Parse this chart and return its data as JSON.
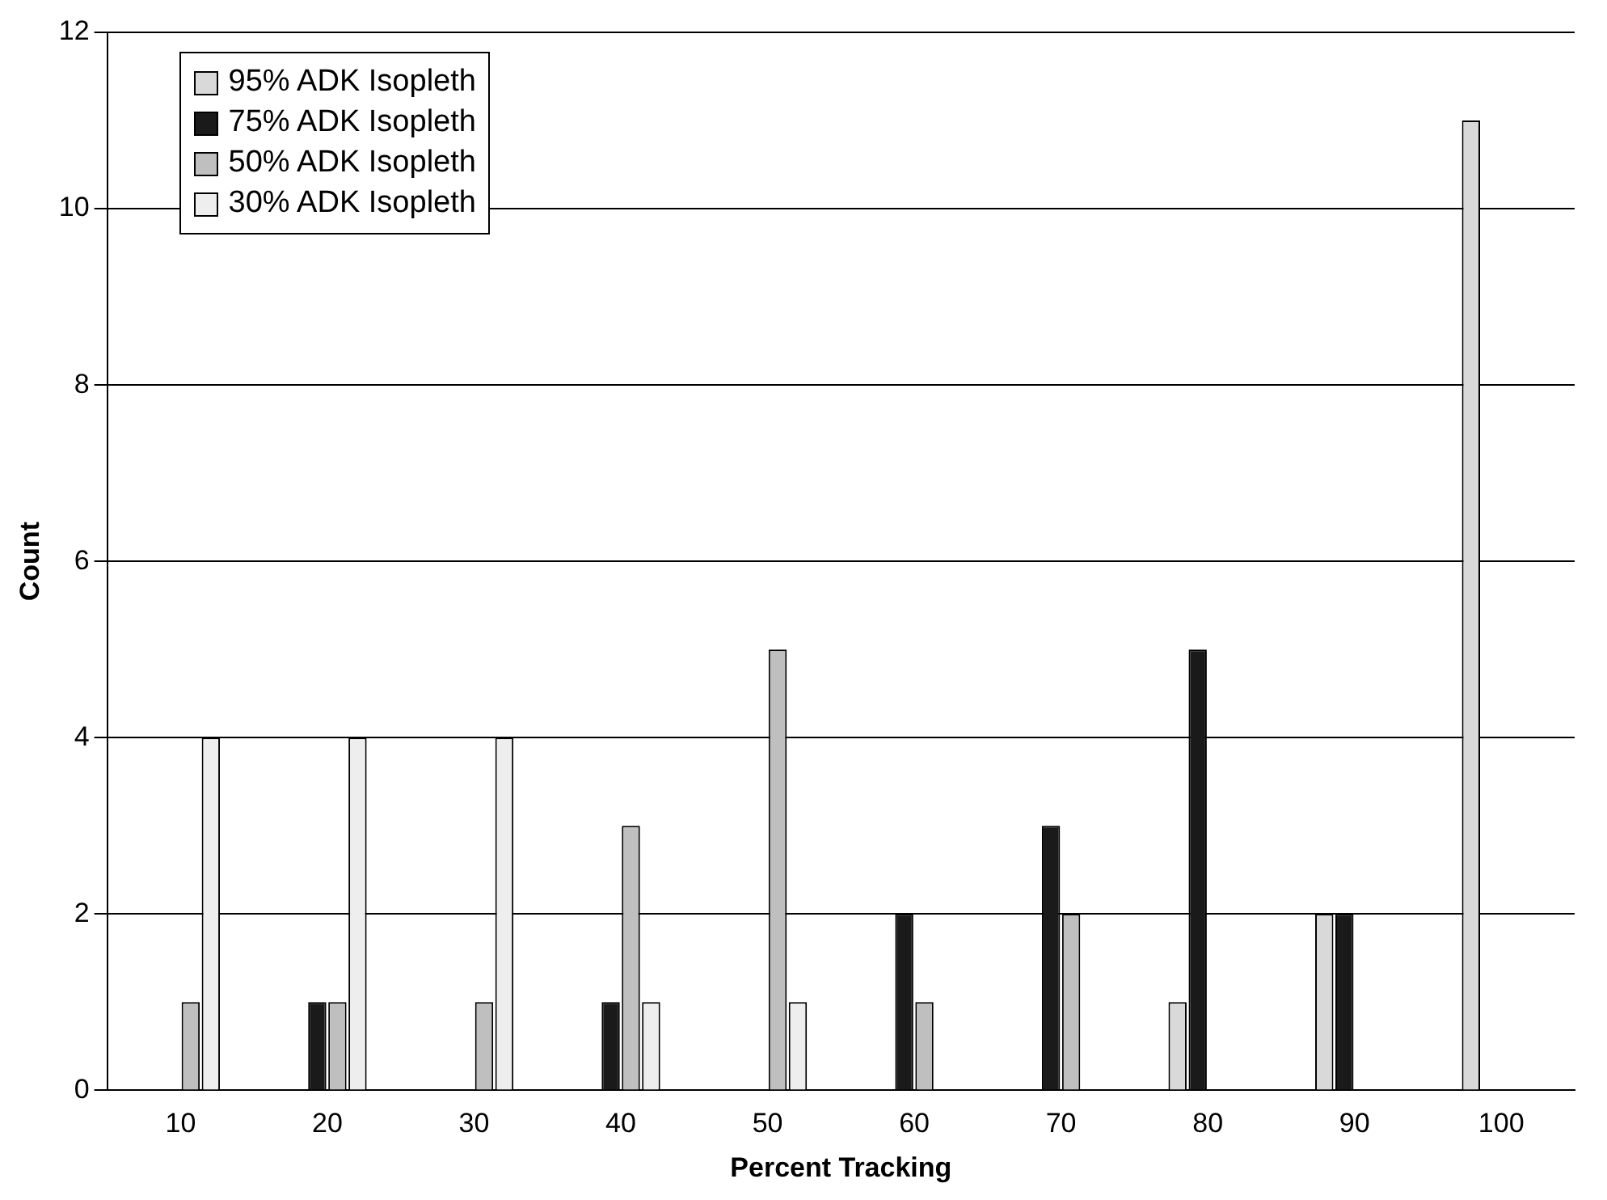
{
  "chart_data": {
    "type": "bar",
    "xlabel": "Percent Tracking",
    "ylabel": "Count",
    "categories": [
      "10",
      "20",
      "30",
      "40",
      "50",
      "60",
      "70",
      "80",
      "90",
      "100"
    ],
    "series": [
      {
        "name": "95% ADK Isopleth",
        "color": "#d9d9d9",
        "values": [
          0,
          0,
          0,
          0,
          0,
          0,
          0,
          1,
          2,
          11
        ]
      },
      {
        "name": "75% ADK Isopleth",
        "color": "#1a1a1a",
        "values": [
          0,
          1,
          0,
          1,
          0,
          2,
          3,
          5,
          2,
          0
        ]
      },
      {
        "name": "50% ADK Isopleth",
        "color": "#bfbfbf",
        "values": [
          1,
          1,
          1,
          3,
          5,
          1,
          2,
          0,
          0,
          0
        ]
      },
      {
        "name": "30% ADK Isopleth",
        "color": "#eeeeee",
        "values": [
          4,
          4,
          4,
          1,
          1,
          0,
          0,
          0,
          0,
          0
        ]
      }
    ],
    "ylim": [
      0,
      12
    ],
    "yticks": [
      0,
      2,
      4,
      6,
      8,
      10,
      12
    ],
    "grid": "y",
    "legend": "top left"
  }
}
